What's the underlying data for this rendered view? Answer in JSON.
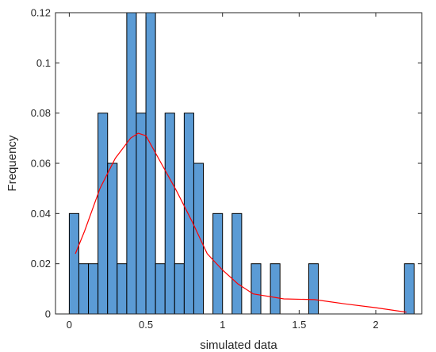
{
  "chart_data": {
    "type": "bar",
    "xlabel": "simulated data",
    "ylabel": "Frequency",
    "xlim": [
      -0.09,
      2.3
    ],
    "ylim": [
      0,
      0.12
    ],
    "grid": false,
    "x_ticks": [
      0,
      0.5,
      1,
      1.5,
      2
    ],
    "x_tick_labels": [
      "0",
      "0.5",
      "1",
      "1.5",
      "2"
    ],
    "y_ticks": [
      0,
      0.02,
      0.04,
      0.06,
      0.08,
      0.1,
      0.12
    ],
    "y_tick_labels": [
      "0",
      "0.02",
      "0.04",
      "0.06",
      "0.08",
      "0.1",
      "0.12"
    ],
    "bin_width": 0.0625,
    "bin_start": 0,
    "histogram_values": [
      0.04,
      0.02,
      0.02,
      0.08,
      0.06,
      0.02,
      0.12,
      0.08,
      0.12,
      0.02,
      0.08,
      0.02,
      0.08,
      0.06,
      0.0,
      0.04,
      0.0,
      0.04,
      0.0,
      0.02,
      0.0,
      0.02,
      0.0,
      0.0,
      0.0,
      0.02,
      0.0,
      0.0,
      0.0,
      0.0,
      0.0,
      0.0,
      0.0,
      0.0,
      0.0,
      0.02
    ],
    "bar_color": "#5B9BD5",
    "bar_edge_color": "#000000",
    "density_curve": {
      "color": "#FF0000",
      "x": [
        0.04,
        0.1,
        0.2,
        0.3,
        0.4,
        0.45,
        0.5,
        0.6,
        0.7,
        0.8,
        0.9,
        1.0,
        1.1,
        1.2,
        1.4,
        1.6,
        1.8,
        2.0,
        2.2
      ],
      "y": [
        0.024,
        0.033,
        0.05,
        0.062,
        0.07,
        0.072,
        0.071,
        0.06,
        0.049,
        0.037,
        0.024,
        0.0175,
        0.012,
        0.008,
        0.006,
        0.0057,
        0.004,
        0.0025,
        0.0007
      ]
    }
  }
}
